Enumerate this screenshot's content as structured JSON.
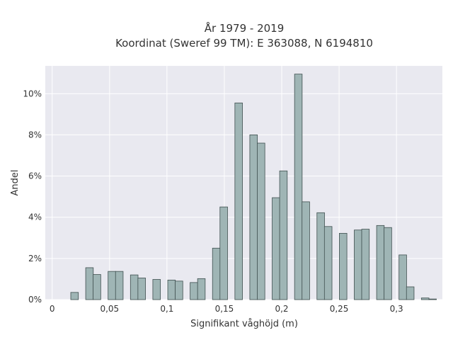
{
  "title_line1": "År 1979 - 2019",
  "title_line2": "Koordinat (Sweref 99 TM): E 363088, N 6194810",
  "colors": {
    "plot_background": "#e9e9f0",
    "grid": "#ffffff",
    "bar_fill": "#9fb5b5",
    "bar_stroke": "#3f4f4f",
    "text": "#333333"
  },
  "chart_data": {
    "type": "bar",
    "title": "År 1979 - 2019 / Koordinat (Sweref 99 TM): E 363088, N 6194810",
    "xlabel": "Signifikant våghöjd (m)",
    "ylabel": "Andel",
    "xlim": [
      -0.006,
      0.34
    ],
    "ylim": [
      0,
      11.35
    ],
    "grid": true,
    "x_ticks": [
      {
        "value": 0,
        "label": "0"
      },
      {
        "value": 0.05,
        "label": "0,05"
      },
      {
        "value": 0.1,
        "label": "0,1"
      },
      {
        "value": 0.15,
        "label": "0,15"
      },
      {
        "value": 0.2,
        "label": "0,2"
      },
      {
        "value": 0.25,
        "label": "0,25"
      },
      {
        "value": 0.3,
        "label": "0,3"
      }
    ],
    "y_ticks": [
      {
        "value": 0,
        "label": "0%"
      },
      {
        "value": 2,
        "label": "2%"
      },
      {
        "value": 4,
        "label": "4%"
      },
      {
        "value": 6,
        "label": "6%"
      },
      {
        "value": 8,
        "label": "8%"
      },
      {
        "value": 10,
        "label": "10%"
      }
    ],
    "bar_width": 0.0066,
    "bars": [
      {
        "x": 0.0195,
        "value": 0.35
      },
      {
        "x": 0.0325,
        "value": 1.55
      },
      {
        "x": 0.039,
        "value": 1.22
      },
      {
        "x": 0.052,
        "value": 1.37
      },
      {
        "x": 0.0585,
        "value": 1.37
      },
      {
        "x": 0.0715,
        "value": 1.2
      },
      {
        "x": 0.078,
        "value": 1.05
      },
      {
        "x": 0.091,
        "value": 0.98
      },
      {
        "x": 0.104,
        "value": 0.95
      },
      {
        "x": 0.1105,
        "value": 0.9
      },
      {
        "x": 0.1235,
        "value": 0.83
      },
      {
        "x": 0.13,
        "value": 1.02
      },
      {
        "x": 0.143,
        "value": 2.5
      },
      {
        "x": 0.1495,
        "value": 4.5
      },
      {
        "x": 0.1625,
        "value": 9.55
      },
      {
        "x": 0.1755,
        "value": 8.0
      },
      {
        "x": 0.182,
        "value": 7.6
      },
      {
        "x": 0.195,
        "value": 4.95
      },
      {
        "x": 0.2015,
        "value": 6.25
      },
      {
        "x": 0.2145,
        "value": 10.95
      },
      {
        "x": 0.221,
        "value": 4.75
      },
      {
        "x": 0.234,
        "value": 4.22
      },
      {
        "x": 0.2405,
        "value": 3.55
      },
      {
        "x": 0.2535,
        "value": 3.22
      },
      {
        "x": 0.2665,
        "value": 3.38
      },
      {
        "x": 0.273,
        "value": 3.42
      },
      {
        "x": 0.286,
        "value": 3.6
      },
      {
        "x": 0.2925,
        "value": 3.5
      },
      {
        "x": 0.3055,
        "value": 2.17
      },
      {
        "x": 0.312,
        "value": 0.62
      },
      {
        "x": 0.325,
        "value": 0.08
      },
      {
        "x": 0.3315,
        "value": 0.03
      }
    ]
  }
}
